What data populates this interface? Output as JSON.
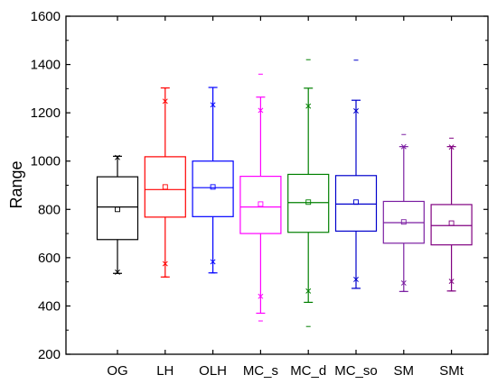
{
  "chart_data": {
    "type": "box",
    "title": "",
    "xlabel": "",
    "ylabel": "Range",
    "ylim": [
      200,
      1600
    ],
    "yticks": [
      200,
      400,
      600,
      800,
      1000,
      1200,
      1400,
      1600
    ],
    "grid": false,
    "legend": "none",
    "categories": [
      "OG",
      "LH",
      "OLH",
      "MC_s",
      "MC_d",
      "MC_so",
      "SM",
      "SMt"
    ],
    "boxes": [
      {
        "name": "OG",
        "color": "#000000",
        "whisker_low": 535,
        "q1": 675,
        "median": 810,
        "q3": 935,
        "whisker_high": 1020,
        "mean": 800,
        "p1": 540,
        "p99": 1015,
        "min": 535,
        "max": 1020
      },
      {
        "name": "LH",
        "color": "#ff0000",
        "whisker_low": 520,
        "q1": 768,
        "median": 882,
        "q3": 1018,
        "whisker_high": 1303,
        "mean": 893,
        "p1": 575,
        "p99": 1248,
        "min": 520,
        "max": 1303
      },
      {
        "name": "OLH",
        "color": "#0000ff",
        "whisker_low": 537,
        "q1": 770,
        "median": 890,
        "q3": 1000,
        "whisker_high": 1305,
        "mean": 893,
        "p1": 583,
        "p99": 1233,
        "min": 537,
        "max": 1305
      },
      {
        "name": "MC_s",
        "color": "#ff00ff",
        "whisker_low": 370,
        "q1": 700,
        "median": 810,
        "q3": 937,
        "whisker_high": 1265,
        "mean": 822,
        "p1": 440,
        "p99": 1210,
        "min": 338,
        "max": 1360
      },
      {
        "name": "MC_d",
        "color": "#008000",
        "whisker_low": 415,
        "q1": 705,
        "median": 828,
        "q3": 945,
        "whisker_high": 1302,
        "mean": 830,
        "p1": 462,
        "p99": 1228,
        "min": 315,
        "max": 1420
      },
      {
        "name": "MC_so",
        "color": "#0000cc",
        "whisker_low": 473,
        "q1": 710,
        "median": 822,
        "q3": 940,
        "whisker_high": 1252,
        "mean": 830,
        "p1": 510,
        "p99": 1208,
        "min": 473,
        "max": 1418
      },
      {
        "name": "SM",
        "color": "#7b1fa2",
        "whisker_low": 460,
        "q1": 660,
        "median": 745,
        "q3": 833,
        "whisker_high": 1060,
        "mean": 748,
        "p1": 495,
        "p99": 1060,
        "min": 460,
        "max": 1110
      },
      {
        "name": "SMt",
        "color": "#800080",
        "whisker_low": 462,
        "q1": 653,
        "median": 733,
        "q3": 820,
        "whisker_high": 1060,
        "mean": 743,
        "p1": 502,
        "p99": 1058,
        "min": 462,
        "max": 1095
      }
    ]
  }
}
